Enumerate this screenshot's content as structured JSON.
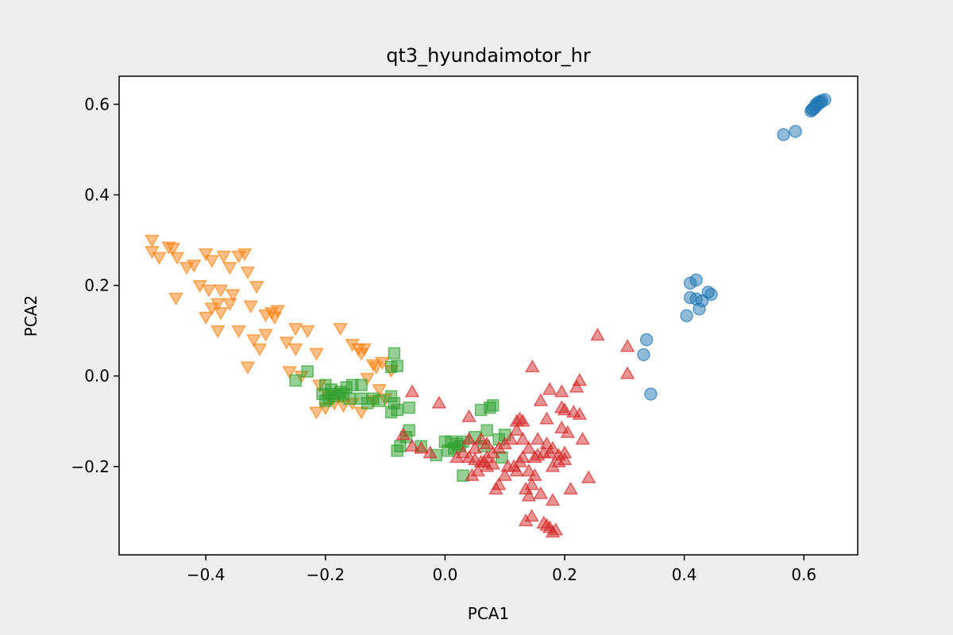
{
  "chart_data": {
    "type": "scatter",
    "title": "qt3_hyundaimotor_hr",
    "xlabel": "PCA1",
    "ylabel": "PCA2",
    "xlim": [
      -0.545,
      0.69
    ],
    "ylim": [
      -0.395,
      0.662
    ],
    "xticks": [
      -0.4,
      -0.2,
      0.0,
      0.2,
      0.4,
      0.6
    ],
    "xtick_labels": [
      "−0.4",
      "−0.2",
      "0.0",
      "0.2",
      "0.4",
      "0.6"
    ],
    "yticks": [
      -0.2,
      0.0,
      0.2,
      0.4,
      0.6
    ],
    "ytick_labels": [
      "−0.2",
      "0.0",
      "0.2",
      "0.4",
      "0.6"
    ],
    "grid": false,
    "legend": false,
    "marker_alpha": 0.5,
    "series": [
      {
        "marker": "circle",
        "color": "#1f77b4",
        "points": [
          [
            0.62,
            0.6
          ],
          [
            0.625,
            0.605
          ],
          [
            0.63,
            0.608
          ],
          [
            0.635,
            0.61
          ],
          [
            0.615,
            0.59
          ],
          [
            0.612,
            0.585
          ],
          [
            0.622,
            0.598
          ],
          [
            0.618,
            0.592
          ],
          [
            0.628,
            0.604
          ],
          [
            0.614,
            0.588
          ],
          [
            0.586,
            0.54
          ],
          [
            0.566,
            0.533
          ],
          [
            0.41,
            0.205
          ],
          [
            0.42,
            0.212
          ],
          [
            0.42,
            0.17
          ],
          [
            0.41,
            0.173
          ],
          [
            0.43,
            0.166
          ],
          [
            0.425,
            0.148
          ],
          [
            0.44,
            0.185
          ],
          [
            0.445,
            0.18
          ],
          [
            0.404,
            0.133
          ],
          [
            0.337,
            0.08
          ],
          [
            0.332,
            0.047
          ],
          [
            0.344,
            -0.04
          ]
        ]
      },
      {
        "marker": "triangle_down",
        "color": "#ff7f0e",
        "points": [
          [
            -0.49,
            0.3
          ],
          [
            -0.49,
            0.275
          ],
          [
            -0.478,
            0.262
          ],
          [
            -0.462,
            0.285
          ],
          [
            -0.455,
            0.282
          ],
          [
            -0.448,
            0.262
          ],
          [
            -0.432,
            0.24
          ],
          [
            -0.42,
            0.245
          ],
          [
            -0.4,
            0.27
          ],
          [
            -0.39,
            0.255
          ],
          [
            -0.37,
            0.265
          ],
          [
            -0.36,
            0.24
          ],
          [
            -0.345,
            0.265
          ],
          [
            -0.335,
            0.27
          ],
          [
            -0.33,
            0.23
          ],
          [
            -0.41,
            0.2
          ],
          [
            -0.395,
            0.19
          ],
          [
            -0.45,
            0.172
          ],
          [
            -0.375,
            0.19
          ],
          [
            -0.355,
            0.18
          ],
          [
            -0.36,
            0.16
          ],
          [
            -0.38,
            0.16
          ],
          [
            -0.39,
            0.15
          ],
          [
            -0.4,
            0.13
          ],
          [
            -0.375,
            0.14
          ],
          [
            -0.315,
            0.198
          ],
          [
            -0.325,
            0.155
          ],
          [
            -0.29,
            0.14
          ],
          [
            -0.285,
            0.13
          ],
          [
            -0.28,
            0.145
          ],
          [
            -0.3,
            0.135
          ],
          [
            -0.38,
            0.1
          ],
          [
            -0.345,
            0.1
          ],
          [
            -0.3,
            0.092
          ],
          [
            -0.32,
            0.08
          ],
          [
            -0.31,
            0.06
          ],
          [
            -0.25,
            0.105
          ],
          [
            -0.23,
            0.1
          ],
          [
            -0.265,
            0.075
          ],
          [
            -0.25,
            0.06
          ],
          [
            -0.215,
            0.05
          ],
          [
            -0.175,
            0.105
          ],
          [
            -0.155,
            0.07
          ],
          [
            -0.145,
            0.06
          ],
          [
            -0.135,
            0.06
          ],
          [
            -0.14,
            0.05
          ],
          [
            -0.33,
            0.02
          ],
          [
            -0.26,
            0.01
          ],
          [
            -0.24,
            0.0
          ],
          [
            -0.12,
            0.025
          ],
          [
            -0.105,
            0.03
          ],
          [
            -0.115,
            0.02
          ],
          [
            -0.09,
            0.012
          ],
          [
            -0.13,
            -0.005
          ],
          [
            -0.21,
            -0.02
          ],
          [
            -0.195,
            -0.045
          ],
          [
            -0.185,
            -0.06
          ],
          [
            -0.17,
            -0.065
          ],
          [
            -0.155,
            -0.06
          ],
          [
            -0.2,
            -0.07
          ],
          [
            -0.215,
            -0.08
          ],
          [
            -0.14,
            -0.08
          ],
          [
            -0.11,
            -0.03
          ],
          [
            -0.1,
            -0.05
          ],
          [
            -0.12,
            -0.055
          ]
        ]
      },
      {
        "marker": "square",
        "color": "#2ca02c",
        "points": [
          [
            -0.085,
            0.05
          ],
          [
            -0.09,
            0.02
          ],
          [
            -0.08,
            0.022
          ],
          [
            -0.23,
            0.01
          ],
          [
            -0.25,
            -0.01
          ],
          [
            -0.2,
            -0.02
          ],
          [
            -0.19,
            -0.03
          ],
          [
            -0.185,
            -0.04
          ],
          [
            -0.175,
            -0.035
          ],
          [
            -0.165,
            -0.025
          ],
          [
            -0.155,
            -0.02
          ],
          [
            -0.14,
            -0.02
          ],
          [
            -0.195,
            -0.05
          ],
          [
            -0.18,
            -0.045
          ],
          [
            -0.17,
            -0.04
          ],
          [
            -0.16,
            -0.05
          ],
          [
            -0.205,
            -0.04
          ],
          [
            -0.14,
            -0.05
          ],
          [
            -0.13,
            -0.06
          ],
          [
            -0.12,
            -0.05
          ],
          [
            -0.11,
            -0.055
          ],
          [
            -0.2,
            -0.055
          ],
          [
            -0.09,
            -0.045
          ],
          [
            -0.085,
            -0.06
          ],
          [
            -0.08,
            -0.075
          ],
          [
            -0.09,
            -0.08
          ],
          [
            -0.06,
            -0.07
          ],
          [
            -0.06,
            -0.12
          ],
          [
            -0.065,
            -0.135
          ],
          [
            -0.075,
            -0.155
          ],
          [
            -0.08,
            -0.165
          ],
          [
            -0.04,
            -0.155
          ],
          [
            -0.015,
            -0.175
          ],
          [
            0.0,
            -0.145
          ],
          [
            0.01,
            -0.145
          ],
          [
            0.02,
            -0.15
          ],
          [
            0.025,
            -0.155
          ],
          [
            0.03,
            -0.145
          ],
          [
            0.015,
            -0.16
          ],
          [
            0.005,
            -0.165
          ],
          [
            0.07,
            -0.12
          ],
          [
            0.075,
            -0.07
          ],
          [
            0.06,
            -0.075
          ],
          [
            0.08,
            -0.065
          ],
          [
            0.05,
            -0.135
          ],
          [
            0.09,
            -0.14
          ],
          [
            0.1,
            -0.13
          ],
          [
            0.065,
            -0.155
          ],
          [
            0.095,
            -0.18
          ],
          [
            0.03,
            -0.22
          ]
        ]
      },
      {
        "marker": "triangle_up",
        "color": "#d62728",
        "points": [
          [
            0.255,
            0.09
          ],
          [
            0.305,
            0.065
          ],
          [
            0.305,
            0.005
          ],
          [
            0.146,
            0.02
          ],
          [
            0.225,
            -0.01
          ],
          [
            0.22,
            -0.025
          ],
          [
            0.175,
            -0.03
          ],
          [
            0.195,
            -0.035
          ],
          [
            0.16,
            -0.055
          ],
          [
            -0.055,
            -0.035
          ],
          [
            -0.01,
            -0.06
          ],
          [
            0.04,
            -0.09
          ],
          [
            0.12,
            -0.1
          ],
          [
            0.125,
            -0.095
          ],
          [
            0.13,
            -0.1
          ],
          [
            0.17,
            -0.095
          ],
          [
            0.195,
            -0.07
          ],
          [
            0.2,
            -0.075
          ],
          [
            0.215,
            -0.08
          ],
          [
            0.225,
            -0.085
          ],
          [
            0.195,
            -0.115
          ],
          [
            0.205,
            -0.125
          ],
          [
            0.23,
            -0.14
          ],
          [
            0.155,
            -0.14
          ],
          [
            0.17,
            -0.15
          ],
          [
            0.18,
            -0.16
          ],
          [
            0.19,
            -0.175
          ],
          [
            0.2,
            -0.17
          ],
          [
            0.175,
            -0.17
          ],
          [
            0.165,
            -0.17
          ],
          [
            0.155,
            -0.175
          ],
          [
            0.15,
            -0.18
          ],
          [
            0.14,
            -0.16
          ],
          [
            0.13,
            -0.14
          ],
          [
            0.12,
            -0.12
          ],
          [
            0.11,
            -0.14
          ],
          [
            0.1,
            -0.15
          ],
          [
            0.09,
            -0.16
          ],
          [
            0.08,
            -0.17
          ],
          [
            0.07,
            -0.18
          ],
          [
            0.06,
            -0.19
          ],
          [
            0.05,
            -0.16
          ],
          [
            0.04,
            -0.14
          ],
          [
            0.03,
            -0.17
          ],
          [
            0.02,
            -0.18
          ],
          [
            0.06,
            -0.14
          ],
          [
            0.07,
            -0.15
          ],
          [
            0.105,
            -0.2
          ],
          [
            0.115,
            -0.2
          ],
          [
            0.12,
            -0.21
          ],
          [
            0.125,
            -0.19
          ],
          [
            0.13,
            -0.18
          ],
          [
            0.14,
            -0.21
          ],
          [
            0.15,
            -0.22
          ],
          [
            0.1,
            -0.22
          ],
          [
            0.09,
            -0.24
          ],
          [
            0.085,
            -0.25
          ],
          [
            0.07,
            -0.2
          ],
          [
            0.055,
            -0.21
          ],
          [
            0.045,
            -0.22
          ],
          [
            0.145,
            -0.24
          ],
          [
            0.16,
            -0.26
          ],
          [
            0.18,
            -0.2
          ],
          [
            0.19,
            -0.19
          ],
          [
            0.2,
            -0.185
          ],
          [
            0.24,
            -0.225
          ],
          [
            0.21,
            -0.25
          ],
          [
            0.18,
            -0.275
          ],
          [
            0.135,
            -0.25
          ],
          [
            0.14,
            -0.265
          ],
          [
            0.135,
            -0.32
          ],
          [
            0.145,
            -0.31
          ],
          [
            0.165,
            -0.325
          ],
          [
            0.17,
            -0.33
          ],
          [
            0.175,
            -0.335
          ],
          [
            0.185,
            -0.34
          ],
          [
            0.18,
            -0.345
          ],
          [
            -0.07,
            -0.13
          ],
          [
            -0.055,
            -0.155
          ],
          [
            -0.04,
            -0.16
          ],
          [
            -0.025,
            -0.17
          ],
          [
            0.04,
            -0.18
          ],
          [
            0.05,
            -0.185
          ],
          [
            0.065,
            -0.19
          ],
          [
            0.08,
            -0.195
          ]
        ]
      }
    ]
  }
}
